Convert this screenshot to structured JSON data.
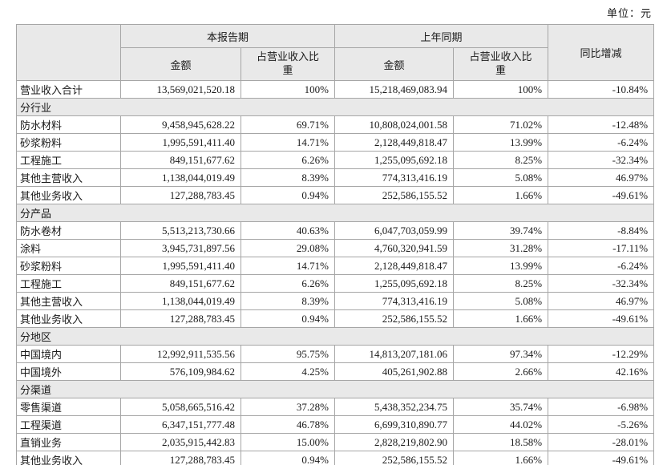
{
  "meta": {
    "unit_label": "单位：元"
  },
  "colors": {
    "header_bg": "#e9e9e9",
    "border": "#a6a6a6"
  },
  "table": {
    "headers": {
      "current_period": "本报告期",
      "prior_period": "上年同期",
      "yoy": "同比增减",
      "amount": "金额",
      "ratio": "占营业收入比重"
    },
    "rows": [
      {
        "type": "data",
        "label": "营业收入合计",
        "cur_amount": "13,569,021,520.18",
        "cur_ratio": "100%",
        "prior_amount": "15,218,469,083.94",
        "prior_ratio": "100%",
        "yoy": "-10.84%"
      },
      {
        "type": "section",
        "label": "分行业"
      },
      {
        "type": "data",
        "label": "防水材料",
        "cur_amount": "9,458,945,628.22",
        "cur_ratio": "69.71%",
        "prior_amount": "10,808,024,001.58",
        "prior_ratio": "71.02%",
        "yoy": "-12.48%"
      },
      {
        "type": "data",
        "label": "砂浆粉料",
        "cur_amount": "1,995,591,411.40",
        "cur_ratio": "14.71%",
        "prior_amount": "2,128,449,818.47",
        "prior_ratio": "13.99%",
        "yoy": "-6.24%"
      },
      {
        "type": "data",
        "label": "工程施工",
        "cur_amount": "849,151,677.62",
        "cur_ratio": "6.26%",
        "prior_amount": "1,255,095,692.18",
        "prior_ratio": "8.25%",
        "yoy": "-32.34%"
      },
      {
        "type": "data",
        "label": "其他主营收入",
        "cur_amount": "1,138,044,019.49",
        "cur_ratio": "8.39%",
        "prior_amount": "774,313,416.19",
        "prior_ratio": "5.08%",
        "yoy": "46.97%"
      },
      {
        "type": "data",
        "label": "其他业务收入",
        "cur_amount": "127,288,783.45",
        "cur_ratio": "0.94%",
        "prior_amount": "252,586,155.52",
        "prior_ratio": "1.66%",
        "yoy": "-49.61%"
      },
      {
        "type": "section",
        "label": "分产品"
      },
      {
        "type": "data",
        "label": "防水卷材",
        "cur_amount": "5,513,213,730.66",
        "cur_ratio": "40.63%",
        "prior_amount": "6,047,703,059.99",
        "prior_ratio": "39.74%",
        "yoy": "-8.84%"
      },
      {
        "type": "data",
        "label": "涂料",
        "cur_amount": "3,945,731,897.56",
        "cur_ratio": "29.08%",
        "prior_amount": "4,760,320,941.59",
        "prior_ratio": "31.28%",
        "yoy": "-17.11%"
      },
      {
        "type": "data",
        "label": "砂浆粉料",
        "cur_amount": "1,995,591,411.40",
        "cur_ratio": "14.71%",
        "prior_amount": "2,128,449,818.47",
        "prior_ratio": "13.99%",
        "yoy": "-6.24%"
      },
      {
        "type": "data",
        "label": "工程施工",
        "cur_amount": "849,151,677.62",
        "cur_ratio": "6.26%",
        "prior_amount": "1,255,095,692.18",
        "prior_ratio": "8.25%",
        "yoy": "-32.34%"
      },
      {
        "type": "data",
        "label": "其他主营收入",
        "cur_amount": "1,138,044,019.49",
        "cur_ratio": "8.39%",
        "prior_amount": "774,313,416.19",
        "prior_ratio": "5.08%",
        "yoy": "46.97%"
      },
      {
        "type": "data",
        "label": "其他业务收入",
        "cur_amount": "127,288,783.45",
        "cur_ratio": "0.94%",
        "prior_amount": "252,586,155.52",
        "prior_ratio": "1.66%",
        "yoy": "-49.61%"
      },
      {
        "type": "section",
        "label": "分地区"
      },
      {
        "type": "data",
        "label": "中国境内",
        "cur_amount": "12,992,911,535.56",
        "cur_ratio": "95.75%",
        "prior_amount": "14,813,207,181.06",
        "prior_ratio": "97.34%",
        "yoy": "-12.29%"
      },
      {
        "type": "data",
        "label": "中国境外",
        "cur_amount": "576,109,984.62",
        "cur_ratio": "4.25%",
        "prior_amount": "405,261,902.88",
        "prior_ratio": "2.66%",
        "yoy": "42.16%"
      },
      {
        "type": "section",
        "label": "分渠道"
      },
      {
        "type": "data",
        "label": "零售渠道",
        "cur_amount": "5,058,665,516.42",
        "cur_ratio": "37.28%",
        "prior_amount": "5,438,352,234.75",
        "prior_ratio": "35.74%",
        "yoy": "-6.98%"
      },
      {
        "type": "data",
        "label": "工程渠道",
        "cur_amount": "6,347,151,777.48",
        "cur_ratio": "46.78%",
        "prior_amount": "6,699,310,890.77",
        "prior_ratio": "44.02%",
        "yoy": "-5.26%"
      },
      {
        "type": "data",
        "label": "直销业务",
        "cur_amount": "2,035,915,442.83",
        "cur_ratio": "15.00%",
        "prior_amount": "2,828,219,802.90",
        "prior_ratio": "18.58%",
        "yoy": "-28.01%"
      },
      {
        "type": "data",
        "label": "其他业务收入",
        "cur_amount": "127,288,783.45",
        "cur_ratio": "0.94%",
        "prior_amount": "252,586,155.52",
        "prior_ratio": "1.66%",
        "yoy": "-49.61%"
      }
    ]
  }
}
